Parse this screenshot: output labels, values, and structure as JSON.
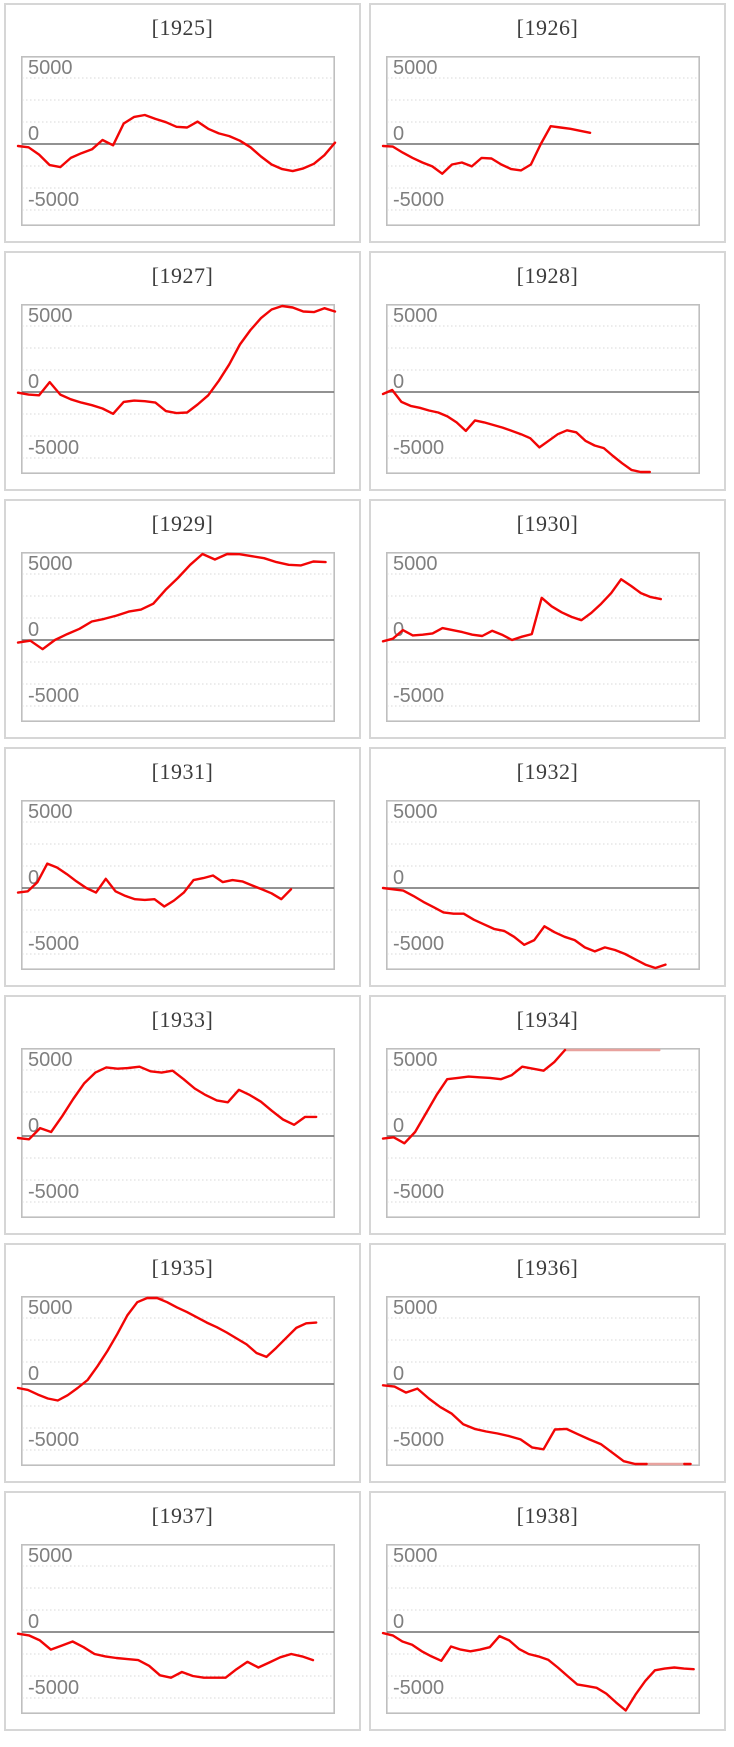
{
  "page": {
    "background": "#ffffff"
  },
  "chart_data": {
    "type": "line",
    "layout": "small-multiples, 2 columns x 7 rows, one panel per year",
    "shared": {
      "ylim": [
        -6500,
        6500
      ],
      "yticks": [
        5000,
        0,
        -5000
      ],
      "ytick_labels": [
        "5000",
        "0",
        "-5000"
      ],
      "gridlines": "7 evenly spaced horizontal dotted lines; middle (zero) line solid",
      "x_axis": "no ticks or labels",
      "legend": "none",
      "line_color": "#f20505",
      "clipped_line_color": "#e8a29e",
      "axis_label_color": "#7f7f7f",
      "title_color": "#3c3c3c",
      "zero_line_color": "#6f6f6f",
      "gridline_color": "#d8d8d8",
      "plot_border_color": "#bfbfbf",
      "card_border_color": "#d6d6d6"
    },
    "charts": [
      {
        "title": "[1925]",
        "x_end": 1.0,
        "values": [
          -150,
          -250,
          -800,
          -1600,
          -1750,
          -1050,
          -700,
          -400,
          300,
          -100,
          1550,
          2050,
          2200,
          1900,
          1650,
          1300,
          1250,
          1700,
          1150,
          800,
          600,
          250,
          -250,
          -950,
          -1550,
          -1900,
          -2050,
          -1850,
          -1500,
          -850,
          100
        ]
      },
      {
        "title": "[1926]",
        "x_end": 0.65,
        "values": [
          -150,
          -200,
          -650,
          -1050,
          -1400,
          -1700,
          -2250,
          -1550,
          -1400,
          -1700,
          -1050,
          -1100,
          -1550,
          -1900,
          -2000,
          -1550,
          0,
          1350,
          1250,
          1150,
          1000,
          850
        ]
      },
      {
        "title": "[1927]",
        "x_end": 1.0,
        "values": [
          -50,
          -200,
          -250,
          750,
          -200,
          -550,
          -800,
          -1000,
          -1250,
          -1650,
          -750,
          -650,
          -700,
          -800,
          -1450,
          -1600,
          -1550,
          -950,
          -250,
          850,
          2100,
          3600,
          4700,
          5600,
          6250,
          6700,
          6400,
          6100,
          6050,
          6350,
          6100
        ]
      },
      {
        "title": "[1928]",
        "x_end": 0.84,
        "values": [
          -150,
          150,
          -750,
          -1050,
          -1200,
          -1400,
          -1550,
          -1850,
          -2300,
          -2950,
          -2150,
          -2300,
          -2500,
          -2700,
          -2950,
          -3200,
          -3500,
          -4200,
          -3700,
          -3200,
          -2900,
          -3050,
          -3700,
          -4050,
          -4250,
          -4850,
          -5400,
          -5900,
          -6100,
          -6300
        ]
      },
      {
        "title": "[1929]",
        "x_end": 0.97,
        "values": [
          -200,
          -50,
          -700,
          0,
          450,
          850,
          1400,
          1600,
          1850,
          2150,
          2300,
          2750,
          3800,
          4700,
          5700,
          6600,
          6100,
          6650,
          6500,
          6350,
          6200,
          5900,
          5700,
          5650,
          5950,
          5900
        ]
      },
      {
        "title": "[1930]",
        "x_end": 0.875,
        "values": [
          -100,
          100,
          750,
          350,
          400,
          500,
          900,
          750,
          600,
          400,
          300,
          700,
          400,
          0,
          250,
          450,
          3200,
          2550,
          2100,
          1750,
          1500,
          2050,
          2750,
          3550,
          4600,
          4100,
          3550,
          3250,
          3100
        ]
      },
      {
        "title": "[1931]",
        "x_end": 0.86,
        "values": [
          -350,
          -250,
          450,
          1850,
          1550,
          1050,
          500,
          0,
          -350,
          700,
          -250,
          -600,
          -850,
          -900,
          -850,
          -1400,
          -950,
          -350,
          600,
          750,
          950,
          450,
          600,
          500,
          200,
          -100,
          -400,
          -850,
          -100
        ]
      },
      {
        "title": "[1932]",
        "x_end": 0.89,
        "values": [
          0,
          -100,
          -200,
          -600,
          -1050,
          -1450,
          -1850,
          -1950,
          -1950,
          -2400,
          -2750,
          -3100,
          -3250,
          -3700,
          -4300,
          -3950,
          -2900,
          -3350,
          -3700,
          -3950,
          -4500,
          -4800,
          -4500,
          -4700,
          -5000,
          -5400,
          -5800,
          -6300,
          -5800
        ]
      },
      {
        "title": "[1933]",
        "x_end": 0.94,
        "values": [
          -150,
          -250,
          600,
          300,
          1500,
          2800,
          4000,
          4800,
          5200,
          5100,
          5150,
          5250,
          4900,
          4800,
          4950,
          4300,
          3600,
          3100,
          2700,
          2550,
          3500,
          3100,
          2600,
          1900,
          1250,
          850,
          1450,
          1450
        ]
      },
      {
        "title": "[1934]",
        "x_end": 0.57,
        "values": [
          -200,
          -100,
          -550,
          300,
          1700,
          3100,
          4300,
          4400,
          4500,
          4450,
          4400,
          4300,
          4600,
          5250,
          5100,
          4950,
          5600,
          6700
        ],
        "clip": {
          "edge": "top",
          "from": 0.57,
          "to": 0.87
        },
        "note": "series exceeds axis maximum; clipped flat segment drawn lighter along top border"
      },
      {
        "title": "[1935]",
        "x_end": 0.94,
        "values": [
          -300,
          -450,
          -800,
          -1100,
          -1250,
          -850,
          -300,
          300,
          1350,
          2500,
          3800,
          5200,
          6200,
          6700,
          6650,
          6200,
          5800,
          5450,
          5050,
          4650,
          4300,
          3900,
          3450,
          3000,
          2350,
          2050,
          2750,
          3500,
          4250,
          4600,
          4650
        ],
        "clip": {
          "edge": "top",
          "from": 0.4,
          "to": 0.45
        }
      },
      {
        "title": "[1936]",
        "x_end": 0.83,
        "values": [
          -100,
          -200,
          -650,
          -350,
          -1100,
          -1750,
          -2250,
          -3050,
          -3400,
          -3600,
          -3750,
          -3950,
          -4200,
          -4800,
          -4950,
          -3450,
          -3400,
          -3800,
          -4200,
          -4550,
          -5200,
          -5850,
          -6250,
          -6600
        ],
        "clip": {
          "edge": "bottom",
          "from": 0.83,
          "to": 0.95
        },
        "tail": {
          "x": [
            0.95,
            0.97
          ],
          "values": [
            -6600,
            -6100
          ]
        },
        "note": "series exceeds axis minimum; clipped flat segment drawn lighter along bottom border"
      },
      {
        "title": "[1937]",
        "x_end": 0.93,
        "values": [
          -130,
          -260,
          -640,
          -1330,
          -1030,
          -720,
          -1150,
          -1670,
          -1850,
          -1970,
          -2050,
          -2130,
          -2560,
          -3280,
          -3460,
          -3030,
          -3330,
          -3460,
          -3460,
          -3460,
          -2820,
          -2260,
          -2690,
          -2310,
          -1920,
          -1670,
          -1850,
          -2130
        ]
      },
      {
        "title": "[1938]",
        "x_end": 0.98,
        "values": [
          -80,
          -260,
          -720,
          -970,
          -1460,
          -1850,
          -2180,
          -1100,
          -1330,
          -1460,
          -1330,
          -1150,
          -310,
          -640,
          -1280,
          -1670,
          -1850,
          -2100,
          -2690,
          -3330,
          -3970,
          -4100,
          -4230,
          -4670,
          -5330,
          -5950,
          -4740,
          -3720,
          -2900,
          -2770,
          -2690,
          -2770,
          -2820
        ]
      }
    ]
  }
}
